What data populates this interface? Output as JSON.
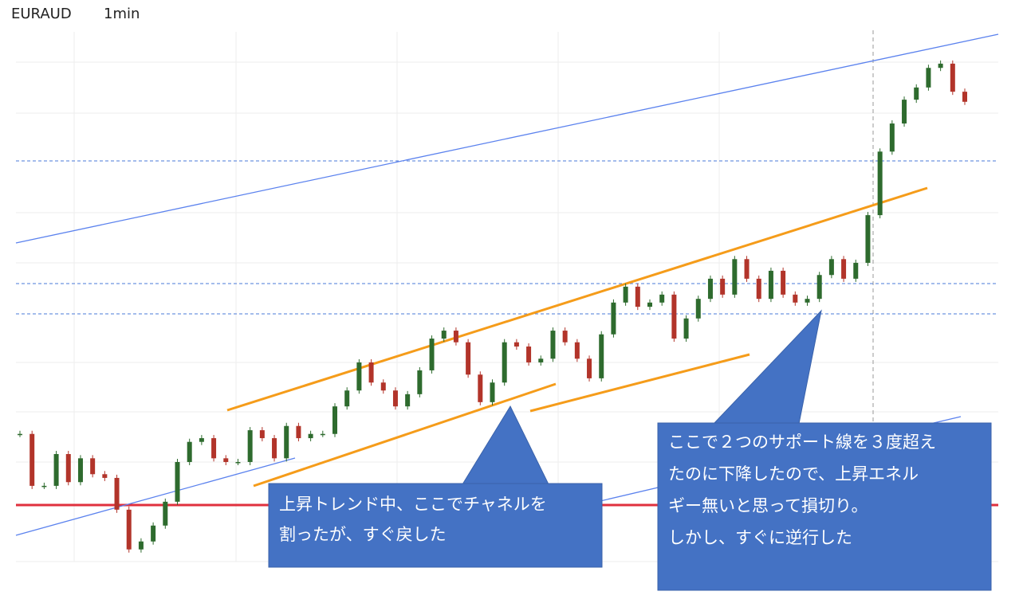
{
  "chart_data": {
    "type": "candlestick",
    "symbol": "EURAUD",
    "interval": "1min",
    "values": [
      24.1,
      14.3,
      14.3,
      20.3,
      15.0,
      19.5,
      16.5,
      15.8,
      9.8,
      2.3,
      3.8,
      6.8,
      11.3,
      18.8,
      22.6,
      23.3,
      19.5,
      18.8,
      18.8,
      24.8,
      23.3,
      19.5,
      25.6,
      23.3,
      24.1,
      24.1,
      29.3,
      32.3,
      37.6,
      33.8,
      32.3,
      29.3,
      31.6,
      36.1,
      42.1,
      43.6,
      41.4,
      35.3,
      30.1,
      33.8,
      41.4,
      40.6,
      37.6,
      38.3,
      43.6,
      41.4,
      38.3,
      34.6,
      42.9,
      48.9,
      51.9,
      48.1,
      48.9,
      50.4,
      42.1,
      45.9,
      49.6,
      53.4,
      50.4,
      57.1,
      53.4,
      49.6,
      54.9,
      50.4,
      48.9,
      49.6,
      54.1,
      57.1,
      53.4,
      56.4,
      65.4,
      77.4,
      82.7,
      87.2,
      89.5,
      93.2,
      94.0,
      88.7,
      86.8
    ],
    "ylim": [
      0,
      100
    ],
    "up_color": "#2e6b2e",
    "down_color": "#b2342a",
    "annotations": [
      {
        "lines": [
          "上昇トレンド中、ここでチャネルを",
          "割ったが、すぐ戻した"
        ]
      },
      {
        "lines": [
          "ここで２つのサポート線を３度超え",
          "たのに下降したので、上昇エネル",
          "ギー無いと思って損切り。",
          "しかし、すぐに逆行した"
        ]
      }
    ]
  }
}
